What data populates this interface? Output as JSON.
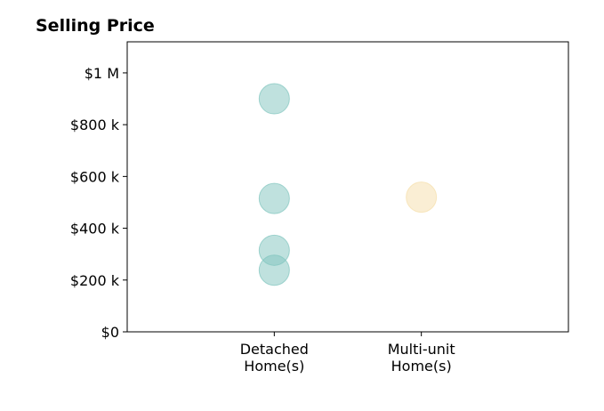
{
  "chart_data": {
    "type": "scatter",
    "title": "Selling Price",
    "xlabel": "",
    "ylabel": "",
    "categories": [
      {
        "lines": [
          "Detached",
          "Home(s)"
        ]
      },
      {
        "lines": [
          "Multi-unit",
          "Home(s)"
        ]
      }
    ],
    "xlim": [
      0,
      3
    ],
    "ylim": [
      0,
      1120000
    ],
    "y_ticks": [
      {
        "value": 0,
        "label": "$0"
      },
      {
        "value": 200000,
        "label": "$200 k"
      },
      {
        "value": 400000,
        "label": "$400 k"
      },
      {
        "value": 600000,
        "label": "$600 k"
      },
      {
        "value": 800000,
        "label": "$800 k"
      },
      {
        "value": 1000000,
        "label": "$1 M"
      }
    ],
    "series": [
      {
        "category_index": 0,
        "color": "#7fc4bd",
        "values": [
          900000,
          515000,
          315000,
          238000
        ]
      },
      {
        "category_index": 1,
        "color": "#f5deaa",
        "values": [
          520000
        ]
      }
    ],
    "grid": false,
    "legend": "none"
  }
}
